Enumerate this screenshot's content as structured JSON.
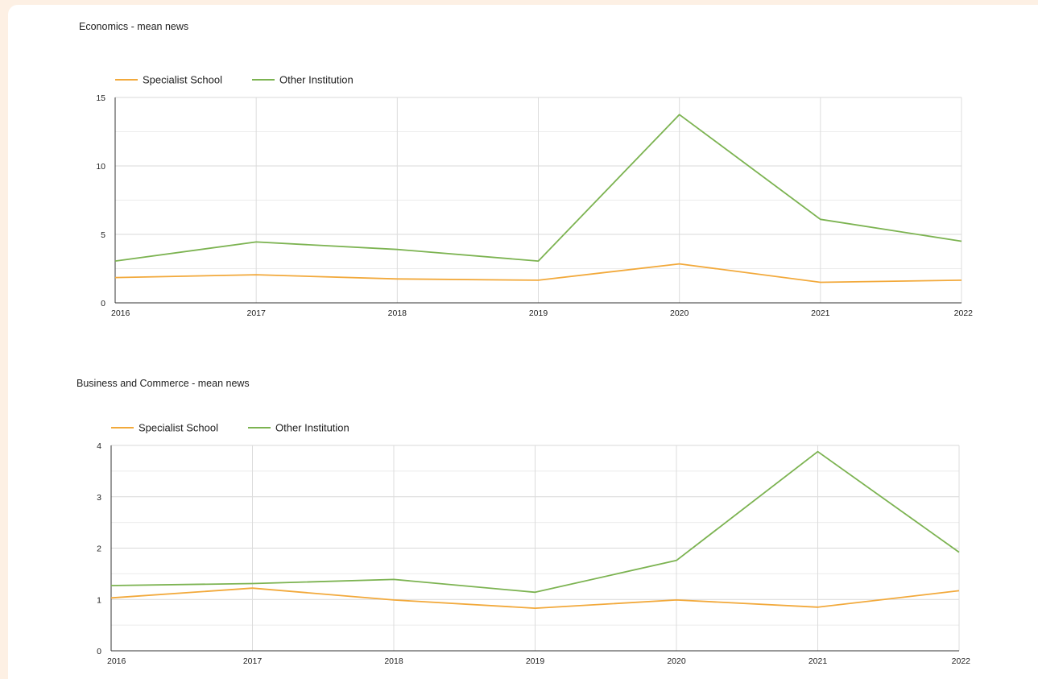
{
  "chart_data": [
    {
      "type": "line",
      "title": "Economics - mean news",
      "x": [
        "2016",
        "2017",
        "2018",
        "2019",
        "2020",
        "2021",
        "2022"
      ],
      "series": [
        {
          "name": "Specialist School",
          "values": [
            1.85,
            2.05,
            1.75,
            1.65,
            2.85,
            1.5,
            1.65
          ],
          "color": "#f2a93b"
        },
        {
          "name": "Other Institution",
          "values": [
            3.05,
            4.45,
            3.9,
            3.05,
            13.75,
            6.1,
            4.5
          ],
          "color": "#7cb351"
        }
      ],
      "ylim": [
        0,
        15
      ],
      "yticks": [
        "0",
        "5",
        "10",
        "15"
      ],
      "grid": true,
      "legend": "top-left"
    },
    {
      "type": "line",
      "title": "Business and Commerce - mean news",
      "x": [
        "2016",
        "2017",
        "2018",
        "2019",
        "2020",
        "2021",
        "2022"
      ],
      "series": [
        {
          "name": "Specialist School",
          "values": [
            1.03,
            1.22,
            0.99,
            0.83,
            0.99,
            0.85,
            1.17
          ],
          "color": "#f2a93b"
        },
        {
          "name": "Other Institution",
          "values": [
            1.27,
            1.31,
            1.39,
            1.14,
            1.76,
            3.88,
            1.92
          ],
          "color": "#7cb351"
        }
      ],
      "ylim": [
        0,
        4
      ],
      "yticks": [
        "0",
        "1",
        "2",
        "3",
        "4"
      ],
      "grid": true,
      "legend": "top-left"
    }
  ]
}
